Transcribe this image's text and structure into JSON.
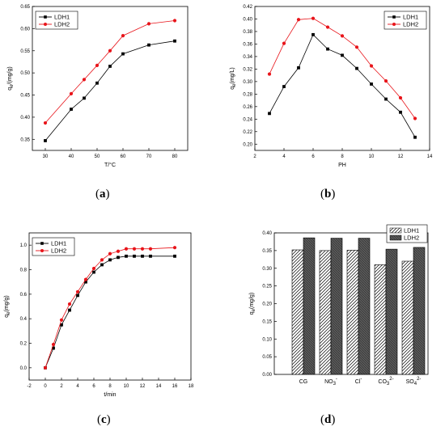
{
  "panels": [
    {
      "id": "a",
      "label_open": "(",
      "label_letter": "a",
      "label_close": ")"
    },
    {
      "id": "b",
      "label_open": "(",
      "label_letter": "b",
      "label_close": ")"
    },
    {
      "id": "c",
      "label_open": "(",
      "label_letter": "c",
      "label_close": ")"
    },
    {
      "id": "d",
      "label_open": "(",
      "label_letter": "d",
      "label_close": ")"
    }
  ],
  "colors": {
    "LDH1": "#000000",
    "LDH2": "#e8141a",
    "axis": "#000000"
  },
  "chart_data": [
    {
      "id": "a",
      "type": "line",
      "xlabel": "T/°C",
      "ylabel": {
        "main": "q",
        "sub": "e",
        "rest": "/(mg/g)"
      },
      "xlim": [
        25,
        85
      ],
      "ylim": [
        0.325,
        0.65
      ],
      "xticks": [
        30,
        40,
        50,
        60,
        70,
        80
      ],
      "yticks": [
        0.35,
        0.4,
        0.45,
        0.5,
        0.55,
        0.6,
        0.65
      ],
      "ytick_decimals": 2,
      "legend": "top-left",
      "series": [
        {
          "name": "LDH1",
          "x": [
            30,
            40,
            45,
            50,
            55,
            60,
            70,
            80
          ],
          "y": [
            0.347,
            0.418,
            0.443,
            0.477,
            0.515,
            0.543,
            0.563,
            0.572
          ]
        },
        {
          "name": "LDH2",
          "x": [
            30,
            40,
            45,
            50,
            55,
            60,
            70,
            80
          ],
          "y": [
            0.387,
            0.453,
            0.485,
            0.517,
            0.55,
            0.584,
            0.611,
            0.618
          ]
        }
      ]
    },
    {
      "id": "b",
      "type": "line",
      "xlabel": "PH",
      "ylabel": {
        "main": "q",
        "sub": "e",
        "rest": "(mg/L)"
      },
      "xlim": [
        2,
        14
      ],
      "ylim": [
        0.19,
        0.42
      ],
      "xticks": [
        2,
        4,
        6,
        8,
        10,
        12,
        14
      ],
      "yticks": [
        0.2,
        0.22,
        0.24,
        0.26,
        0.28,
        0.3,
        0.32,
        0.34,
        0.36,
        0.38,
        0.4,
        0.42
      ],
      "ytick_decimals": 2,
      "legend": "top-right",
      "series": [
        {
          "name": "LDH1",
          "x": [
            3,
            4,
            5,
            6,
            7,
            8,
            9,
            10,
            11,
            12,
            13
          ],
          "y": [
            0.249,
            0.292,
            0.322,
            0.375,
            0.352,
            0.342,
            0.321,
            0.296,
            0.272,
            0.251,
            0.211
          ]
        },
        {
          "name": "LDH2",
          "x": [
            3,
            4,
            5,
            6,
            7,
            8,
            9,
            10,
            11,
            12,
            13
          ],
          "y": [
            0.312,
            0.361,
            0.399,
            0.401,
            0.387,
            0.373,
            0.355,
            0.325,
            0.301,
            0.274,
            0.241
          ]
        }
      ]
    },
    {
      "id": "c",
      "type": "line",
      "xlabel": "t/min",
      "ylabel": {
        "main": "q",
        "sub": "e",
        "rest": "(mg/g)"
      },
      "xlim": [
        -2,
        18
      ],
      "ylim": [
        -0.1,
        1.1
      ],
      "xticks": [
        -2,
        0,
        2,
        4,
        6,
        8,
        10,
        12,
        14,
        16,
        18
      ],
      "yticks": [
        0.0,
        0.2,
        0.4,
        0.6,
        0.8,
        1.0
      ],
      "ytick_decimals": 1,
      "legend": "top-left",
      "series": [
        {
          "name": "LDH1",
          "x": [
            0,
            1,
            2,
            3,
            4,
            5,
            6,
            7,
            8,
            9,
            10,
            11,
            12,
            13,
            16
          ],
          "y": [
            0.0,
            0.16,
            0.35,
            0.47,
            0.59,
            0.7,
            0.78,
            0.84,
            0.88,
            0.9,
            0.91,
            0.91,
            0.91,
            0.91,
            0.91
          ]
        },
        {
          "name": "LDH2",
          "x": [
            0,
            1,
            2,
            3,
            4,
            5,
            6,
            7,
            8,
            9,
            10,
            11,
            12,
            13,
            16
          ],
          "y": [
            0.0,
            0.19,
            0.39,
            0.52,
            0.62,
            0.72,
            0.81,
            0.88,
            0.93,
            0.95,
            0.97,
            0.97,
            0.97,
            0.97,
            0.98
          ]
        }
      ]
    },
    {
      "id": "d",
      "type": "bar",
      "xlabel": "",
      "ylabel": {
        "main": "q",
        "sub": "e",
        "rest": "(mg/g)"
      },
      "ylim": [
        0,
        0.4
      ],
      "yticks": [
        0.0,
        0.05,
        0.1,
        0.15,
        0.2,
        0.25,
        0.3,
        0.35,
        0.4
      ],
      "ytick_decimals": 2,
      "legend": "top-right",
      "categories": [
        {
          "base": "CG",
          "sub": "",
          "sup": ""
        },
        {
          "base": "NO",
          "sub": "3",
          "sup": "-"
        },
        {
          "base": "Cl",
          "sub": "",
          "sup": "-"
        },
        {
          "base": "CO",
          "sub": "3",
          "sup": "2-"
        },
        {
          "base": "SO",
          "sub": "4",
          "sup": "2-"
        }
      ],
      "series": [
        {
          "name": "LDH1",
          "values": [
            0.352,
            0.35,
            0.351,
            0.31,
            0.32
          ]
        },
        {
          "name": "LDH2",
          "values": [
            0.386,
            0.385,
            0.385,
            0.354,
            0.359
          ]
        }
      ]
    }
  ]
}
